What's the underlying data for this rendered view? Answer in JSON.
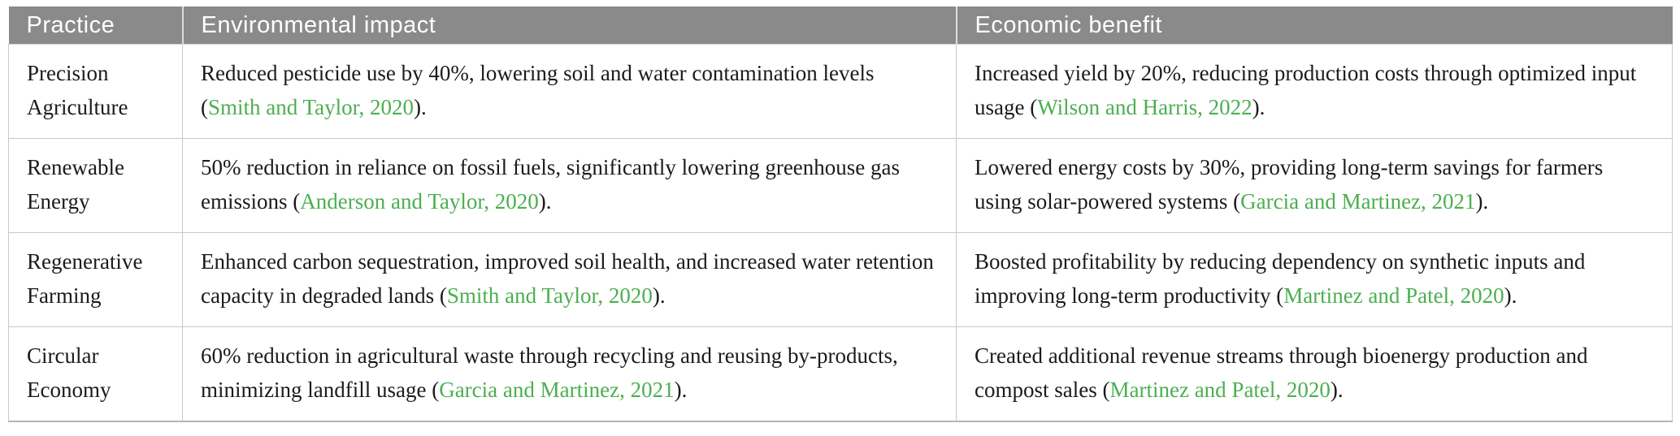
{
  "table": {
    "columns": [
      {
        "label": "Practice"
      },
      {
        "label": "Environmental impact"
      },
      {
        "label": "Economic benefit"
      }
    ],
    "rows": [
      {
        "practice": "Precision Agriculture",
        "environmental": {
          "pre": "Reduced pesticide use by 40%, lowering soil and water contamination levels (",
          "link": "Smith and Taylor, 2020",
          "post": ")."
        },
        "economic": {
          "pre": "Increased yield by 20%, reducing production costs through optimized input usage (",
          "link": "Wilson and Harris, 2022",
          "post": ")."
        }
      },
      {
        "practice": "Renewable Energy",
        "environmental": {
          "pre": "50% reduction in reliance on fossil fuels, significantly lowering greenhouse gas emissions (",
          "link": "Anderson and Taylor, 2020",
          "post": ")."
        },
        "economic": {
          "pre": "Lowered energy costs by 30%, providing long-term savings for farmers using solar-powered systems (",
          "link": "Garcia and Martinez, 2021",
          "post": ")."
        }
      },
      {
        "practice": "Regenerative Farming",
        "environmental": {
          "pre": "Enhanced carbon sequestration, improved soil health, and increased water retention capacity in degraded lands (",
          "link": "Smith and Taylor, 2020",
          "post": ")."
        },
        "economic": {
          "pre": "Boosted profitability by reducing dependency on synthetic inputs and improving long-term productivity (",
          "link": "Martinez and Patel, 2020",
          "post": ")."
        }
      },
      {
        "practice": "Circular Economy",
        "environmental": {
          "pre": "60% reduction in agricultural waste through recycling and reusing by-products, minimizing landfill usage (",
          "link": "Garcia and Martinez, 2021",
          "post": ")."
        },
        "economic": {
          "pre": "Created additional revenue streams through bioenergy production and compost sales (",
          "link": "Martinez and Patel, 2020",
          "post": ")."
        }
      }
    ],
    "colors": {
      "header_bg": "#8a8a8a",
      "header_text": "#ffffff",
      "body_text": "#1b1b1b",
      "citation_green": "#4caf50",
      "border": "#c9c9c9"
    }
  }
}
